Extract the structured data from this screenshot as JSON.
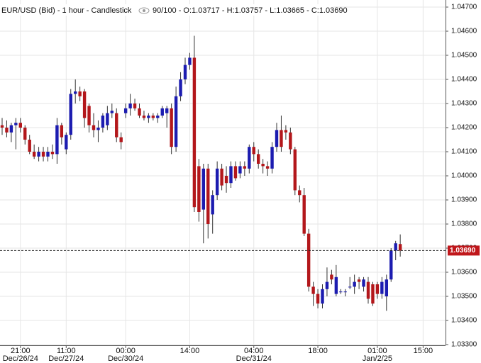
{
  "chart_data": {
    "type": "candlestick",
    "title": "EUR/USD (Bid) - 1 hour - Candlestick",
    "info": "90/100 - O:1.03717 - H:1.03757 - L:1.03665 - C:1.03690",
    "categories": [
      null,
      null,
      null,
      null,
      "21:00",
      null,
      null,
      null,
      null,
      null,
      null,
      null,
      null,
      null,
      "11:00",
      null,
      null,
      null,
      null,
      null,
      null,
      null,
      null,
      null,
      null,
      null,
      null,
      "00:00",
      null,
      null,
      null,
      null,
      null,
      null,
      null,
      null,
      null,
      null,
      null,
      null,
      null,
      "14:00",
      null,
      null,
      null,
      null,
      null,
      null,
      null,
      null,
      null,
      null,
      null,
      null,
      null,
      "04:00",
      null,
      null,
      null,
      null,
      null,
      null,
      null,
      null,
      null,
      null,
      null,
      null,
      null,
      "18:00",
      null,
      null,
      null,
      null,
      null,
      null,
      null,
      null,
      null,
      null,
      null,
      null,
      "01:00",
      null,
      null,
      null,
      null,
      null,
      null,
      null,
      null,
      null,
      "15:00"
    ],
    "category_dates": [
      null,
      null,
      null,
      null,
      "Dec/26/24",
      null,
      null,
      null,
      null,
      null,
      null,
      null,
      null,
      null,
      "Dec/27/24",
      null,
      null,
      null,
      null,
      null,
      null,
      null,
      null,
      null,
      null,
      null,
      null,
      "Dec/30/24",
      null,
      null,
      null,
      null,
      null,
      null,
      null,
      null,
      null,
      null,
      null,
      null,
      null,
      null,
      null,
      null,
      null,
      null,
      null,
      null,
      null,
      null,
      null,
      null,
      null,
      null,
      null,
      "Dec/31/24",
      null,
      null,
      null,
      null,
      null,
      null,
      null,
      null,
      null,
      null,
      null,
      null,
      null,
      null,
      null,
      null,
      null,
      null,
      null,
      null,
      null,
      null,
      null,
      null,
      null,
      null,
      "Jan/2/25",
      null,
      null,
      null,
      null,
      null,
      null,
      null,
      null,
      null,
      null
    ],
    "open": [
      1.0421,
      1.042,
      1.0418,
      1.0421,
      1.0422,
      1.042,
      1.0415,
      1.041,
      1.0408,
      1.041,
      1.0408,
      1.041,
      1.0409,
      1.0421,
      1.0411,
      1.0417,
      1.0434,
      1.0435,
      1.0435,
      1.0429,
      1.0421,
      1.0419,
      1.042,
      1.0421,
      1.0426,
      1.0426,
      1.0416,
      1.0426,
      1.0428,
      1.043,
      1.0428,
      1.0425,
      1.0424,
      1.0425,
      1.0424,
      1.0425,
      1.0426,
      1.0428,
      1.0412,
      1.0433,
      1.044,
      1.0446,
      1.0449,
      1.0404,
      1.0386,
      1.0403,
      1.0384,
      1.0392,
      1.0403,
      1.04,
      1.0397,
      1.0404,
      1.0401,
      1.0404,
      1.0403,
      1.0412,
      1.0409,
      1.0405,
      1.0404,
      1.0403,
      1.0412,
      1.0419,
      1.0419,
      1.0418,
      1.0411,
      1.0394,
      1.0392,
      1.0376,
      1.0354,
      1.0351,
      1.0347,
      1.0353,
      1.0359,
      1.0351,
      1.0352,
      1.0352,
      1.0354,
      1.0354,
      1.0357,
      1.0354,
      1.0356,
      1.0355,
      1.0355,
      1.0351,
      1.035,
      1.0357,
      1.0369,
      1.03717,
      null,
      null,
      null,
      null,
      null
    ],
    "high": [
      1.0424,
      1.0423,
      1.0422,
      1.0424,
      1.0424,
      1.0421,
      1.0417,
      1.0413,
      1.0412,
      1.0412,
      1.0412,
      1.0413,
      1.0424,
      1.0422,
      1.0418,
      1.0436,
      1.044,
      1.0437,
      1.0436,
      1.043,
      1.0426,
      1.0423,
      1.0426,
      1.0429,
      1.043,
      1.0428,
      1.0418,
      1.043,
      1.0434,
      1.0432,
      1.043,
      1.0427,
      1.0426,
      1.0426,
      1.0426,
      1.0429,
      1.0429,
      1.043,
      1.0437,
      1.0443,
      1.0449,
      1.0451,
      1.04581,
      1.0407,
      1.0405,
      1.0405,
      1.0394,
      1.0406,
      1.0405,
      1.0404,
      1.0406,
      1.0406,
      1.0406,
      1.0406,
      1.0413,
      1.0414,
      1.0411,
      1.0407,
      1.0406,
      1.0414,
      1.0422,
      1.0425,
      1.0421,
      1.042,
      1.0412,
      1.0396,
      1.0395,
      1.0378,
      1.0356,
      1.0353,
      1.0355,
      1.0362,
      1.0361,
      1.0363,
      1.0353,
      1.0353,
      1.0358,
      1.0359,
      1.0358,
      1.0358,
      1.0358,
      1.0356,
      1.0356,
      1.0358,
      1.0359,
      1.037,
      1.0373,
      1.03757,
      null,
      null,
      null,
      null,
      null
    ],
    "low": [
      1.0417,
      1.0416,
      1.0414,
      1.0411,
      1.0418,
      1.0413,
      1.0409,
      1.0407,
      1.0406,
      1.0406,
      1.0406,
      1.0407,
      1.0405,
      1.0413,
      1.0409,
      1.0415,
      1.043,
      1.0431,
      1.042,
      1.0418,
      1.0416,
      1.0414,
      1.0418,
      1.0419,
      1.0424,
      1.0414,
      1.0411,
      1.0424,
      1.0425,
      1.0427,
      1.0424,
      1.0423,
      1.0422,
      1.0423,
      1.0422,
      1.0424,
      1.042,
      1.0409,
      1.041,
      1.0431,
      1.0438,
      1.0444,
      1.0385,
      1.0381,
      1.0372,
      1.0374,
      1.0376,
      1.039,
      1.0394,
      1.0393,
      1.0395,
      1.0398,
      1.0399,
      1.04,
      1.0401,
      1.0406,
      1.0403,
      1.0401,
      1.04,
      1.0401,
      1.041,
      1.041,
      1.0415,
      1.0409,
      1.0392,
      1.0389,
      1.0375,
      1.0352,
      1.0346,
      1.0345,
      1.0345,
      1.035,
      1.0355,
      1.035,
      1.0351,
      1.035,
      1.0353,
      1.0351,
      1.0353,
      1.0352,
      1.0347,
      1.0346,
      1.0349,
      1.0349,
      1.0344,
      1.0356,
      1.0365,
      1.03665,
      null,
      null,
      null,
      null,
      null
    ],
    "close": [
      1.042,
      1.0418,
      1.0421,
      1.0422,
      1.042,
      1.0415,
      1.041,
      1.0408,
      1.041,
      1.0408,
      1.041,
      1.0409,
      1.0421,
      1.0416,
      1.0417,
      1.0434,
      1.0435,
      1.0433,
      1.0424,
      1.0421,
      1.0419,
      1.042,
      1.0425,
      1.0426,
      1.0427,
      1.0416,
      1.0414,
      1.0428,
      1.043,
      1.0428,
      1.0425,
      1.0424,
      1.0425,
      1.0424,
      1.0425,
      1.0428,
      1.0428,
      1.0412,
      1.0433,
      1.044,
      1.0446,
      1.0449,
      1.0387,
      1.0385,
      1.0403,
      1.038,
      1.0392,
      1.0403,
      1.0396,
      1.0397,
      1.0404,
      1.0399,
      1.0404,
      1.0403,
      1.0412,
      1.0409,
      1.0405,
      1.0404,
      1.0403,
      1.0412,
      1.0419,
      1.0412,
      1.0418,
      1.0411,
      1.0394,
      1.0392,
      1.0376,
      1.0354,
      1.0351,
      1.0347,
      1.0353,
      1.0356,
      1.0357,
      1.0358,
      1.0352,
      1.0352,
      1.0354,
      1.0356,
      1.0356,
      1.0357,
      1.0349,
      1.0347,
      1.0351,
      1.0356,
      1.0357,
      1.0369,
      1.0372,
      1.0369,
      null,
      null,
      null,
      null,
      null
    ],
    "up_color": "#1c1cb0",
    "down_color": "#b3171b",
    "ylim": [
      1.033,
      1.047
    ],
    "yticks": [
      {
        "value": 1.033,
        "label": "1.03300"
      },
      {
        "value": 1.034,
        "label": "1.03400"
      },
      {
        "value": 1.035,
        "label": "1.03500"
      },
      {
        "value": 1.036,
        "label": "1.03600"
      },
      {
        "value": 1.037,
        "label": "1.03700"
      },
      {
        "value": 1.038,
        "label": "1.03800"
      },
      {
        "value": 1.039,
        "label": "1.03900"
      },
      {
        "value": 1.04,
        "label": "1.04000"
      },
      {
        "value": 1.041,
        "label": "1.04100"
      },
      {
        "value": 1.042,
        "label": "1.04200"
      },
      {
        "value": 1.043,
        "label": "1.04300"
      },
      {
        "value": 1.044,
        "label": "1.04400"
      },
      {
        "value": 1.045,
        "label": "1.04500"
      },
      {
        "value": 1.046,
        "label": "1.04600"
      },
      {
        "value": 1.047,
        "label": "1.04700"
      }
    ],
    "current_price": {
      "value": 1.0369,
      "label": "1.03690"
    },
    "current_price_color": "#c0171b",
    "grid": true
  }
}
